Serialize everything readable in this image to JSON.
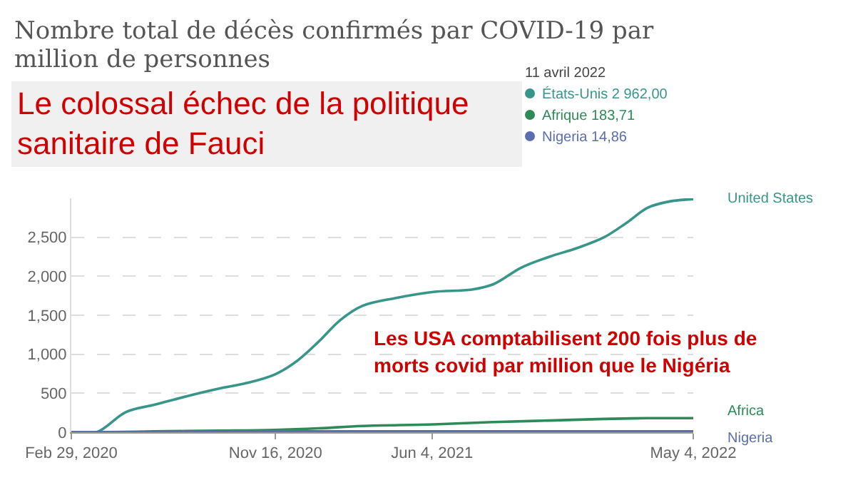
{
  "chart_data": {
    "type": "line",
    "title": "Nombre total de décès confirmés par COVID-19 par million de personnes",
    "series": [
      {
        "name": "United States",
        "color": "#38958a",
        "x": [
          "2020-02-29",
          "2020-04-01",
          "2020-05-09",
          "2020-06-13",
          "2020-07-25",
          "2020-09-05",
          "2020-10-10",
          "2020-11-15",
          "2020-12-13",
          "2021-01-10",
          "2021-02-07",
          "2021-03-07",
          "2021-04-18",
          "2021-06-06",
          "2021-07-25",
          "2021-08-22",
          "2021-09-26",
          "2021-11-01",
          "2021-12-06",
          "2022-01-10",
          "2022-02-07",
          "2022-03-07",
          "2022-04-04",
          "2022-05-04"
        ],
        "values": [
          0,
          0,
          260,
          350,
          460,
          560,
          630,
          740,
          910,
          1160,
          1440,
          1620,
          1720,
          1800,
          1830,
          1900,
          2110,
          2250,
          2360,
          2500,
          2680,
          2880,
          2960,
          2990
        ]
      },
      {
        "name": "Africa",
        "color": "#2e8b57",
        "x": [
          "2020-02-29",
          "2020-04-01",
          "2020-06-13",
          "2020-09-05",
          "2020-11-15",
          "2021-01-10",
          "2021-03-07",
          "2021-06-06",
          "2021-08-22",
          "2021-11-01",
          "2022-01-10",
          "2022-03-07",
          "2022-05-04"
        ],
        "values": [
          0,
          0,
          10,
          20,
          30,
          50,
          80,
          100,
          130,
          150,
          170,
          180,
          180
        ]
      },
      {
        "name": "Nigeria",
        "color": "#5b6fb0",
        "x": [
          "2020-02-29",
          "2020-04-01",
          "2020-06-13",
          "2020-11-15",
          "2021-03-07",
          "2021-09-26",
          "2022-01-10",
          "2022-05-04"
        ],
        "values": [
          0,
          0,
          0,
          10,
          10,
          10,
          10,
          10
        ]
      }
    ],
    "xlim": [
      "2020-02-29",
      "2022-05-04"
    ],
    "xticks": [
      {
        "value": "2020-02-29",
        "label": "Feb 29, 2020"
      },
      {
        "value": "2020-11-16",
        "label": "Nov 16, 2020"
      },
      {
        "value": "2021-06-04",
        "label": "Jun 4, 2021"
      },
      {
        "value": "2022-05-04",
        "label": "May 4, 2022"
      }
    ],
    "ylim": [
      0,
      3000
    ],
    "yticks": [
      0,
      500,
      {
        "value": 1000,
        "label": "1,000"
      },
      {
        "value": 1500,
        "label": "1,500"
      },
      {
        "value": 2000,
        "label": "2,000"
      },
      {
        "value": 2500,
        "label": "2,500"
      }
    ],
    "grid": "y",
    "legend": false,
    "marker": "none",
    "line_style": "solid",
    "annotations": [
      "Le colossal échec de la politique sanitaire de Fauci",
      "11 avril 2022",
      "États-Unis 2 962,00",
      "Afrique 183,71",
      "Nigeria 14,86",
      "Les USA comptabilisent 200 fois plus de morts covid par million que le Nigéria"
    ]
  }
}
